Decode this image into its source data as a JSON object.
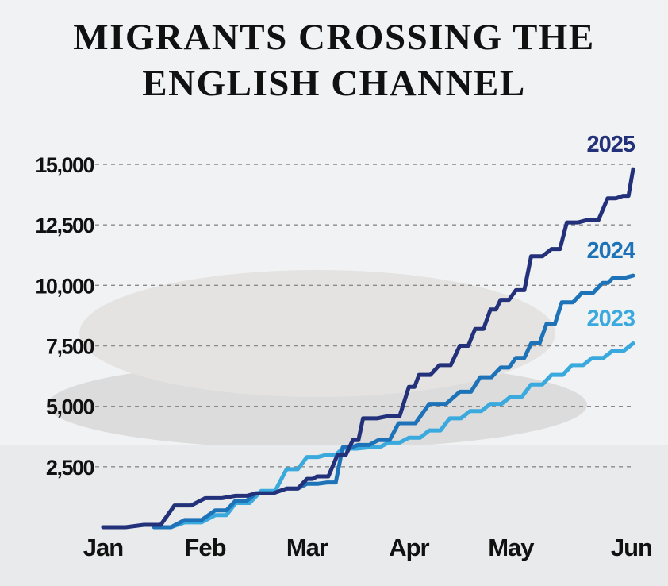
{
  "chart_data": {
    "type": "line",
    "title_lines": [
      "MIGRANTS CROSSING THE",
      "ENGLISH CHANNEL"
    ],
    "xlabel": "",
    "ylabel": "",
    "x_ticks": [
      "Jan",
      "Feb",
      "Mar",
      "Apr",
      "May",
      "Jun"
    ],
    "xlim": [
      0,
      5.3
    ],
    "y_ticks": [
      "2,500",
      "5,000",
      "7,500",
      "10,000",
      "12,500",
      "15,000"
    ],
    "y_tick_values": [
      2500,
      5000,
      7500,
      10000,
      12500,
      15000
    ],
    "ylim": [
      0,
      15800
    ],
    "grid": "horizontal dashed",
    "legend": "labels at line ends",
    "series": [
      {
        "name": "2023",
        "color": "#3aa9dd",
        "points": [
          [
            0.5,
            0
          ],
          [
            0.8,
            200
          ],
          [
            1.1,
            500
          ],
          [
            1.3,
            1000
          ],
          [
            1.55,
            1500
          ],
          [
            1.8,
            2400
          ],
          [
            2.0,
            2900
          ],
          [
            2.2,
            3000
          ],
          [
            2.35,
            3250
          ],
          [
            2.6,
            3300
          ],
          [
            2.8,
            3500
          ],
          [
            3.0,
            3700
          ],
          [
            3.2,
            4000
          ],
          [
            3.4,
            4500
          ],
          [
            3.6,
            4800
          ],
          [
            3.8,
            5100
          ],
          [
            4.0,
            5400
          ],
          [
            4.2,
            5900
          ],
          [
            4.4,
            6300
          ],
          [
            4.6,
            6700
          ],
          [
            4.8,
            7000
          ],
          [
            5.0,
            7300
          ],
          [
            5.2,
            7600
          ]
        ]
      },
      {
        "name": "2024",
        "color": "#1e73b8",
        "points": [
          [
            0.5,
            0
          ],
          [
            0.8,
            300
          ],
          [
            1.1,
            700
          ],
          [
            1.3,
            1100
          ],
          [
            1.5,
            1400
          ],
          [
            1.8,
            1600
          ],
          [
            2.0,
            1800
          ],
          [
            2.2,
            1850
          ],
          [
            2.35,
            3300
          ],
          [
            2.5,
            3400
          ],
          [
            2.7,
            3600
          ],
          [
            2.9,
            4300
          ],
          [
            3.2,
            5100
          ],
          [
            3.5,
            5600
          ],
          [
            3.7,
            6200
          ],
          [
            3.9,
            6600
          ],
          [
            4.05,
            7000
          ],
          [
            4.2,
            7600
          ],
          [
            4.35,
            8400
          ],
          [
            4.5,
            9300
          ],
          [
            4.7,
            9700
          ],
          [
            4.9,
            10100
          ],
          [
            5.0,
            10300
          ],
          [
            5.2,
            10400
          ]
        ]
      },
      {
        "name": "2025",
        "color": "#23317a",
        "points": [
          [
            0,
            0
          ],
          [
            0.4,
            100
          ],
          [
            0.7,
            900
          ],
          [
            1.0,
            1200
          ],
          [
            1.3,
            1300
          ],
          [
            1.5,
            1400
          ],
          [
            1.8,
            1600
          ],
          [
            2.0,
            2000
          ],
          [
            2.1,
            2100
          ],
          [
            2.3,
            3000
          ],
          [
            2.45,
            3600
          ],
          [
            2.55,
            4500
          ],
          [
            2.8,
            4600
          ],
          [
            3.0,
            5800
          ],
          [
            3.1,
            6300
          ],
          [
            3.3,
            6700
          ],
          [
            3.5,
            7500
          ],
          [
            3.65,
            8200
          ],
          [
            3.8,
            9000
          ],
          [
            3.9,
            9400
          ],
          [
            4.05,
            9800
          ],
          [
            4.2,
            11200
          ],
          [
            4.4,
            11500
          ],
          [
            4.55,
            12600
          ],
          [
            4.75,
            12700
          ],
          [
            4.95,
            13600
          ],
          [
            5.1,
            13700
          ],
          [
            5.2,
            14800
          ]
        ]
      }
    ]
  }
}
